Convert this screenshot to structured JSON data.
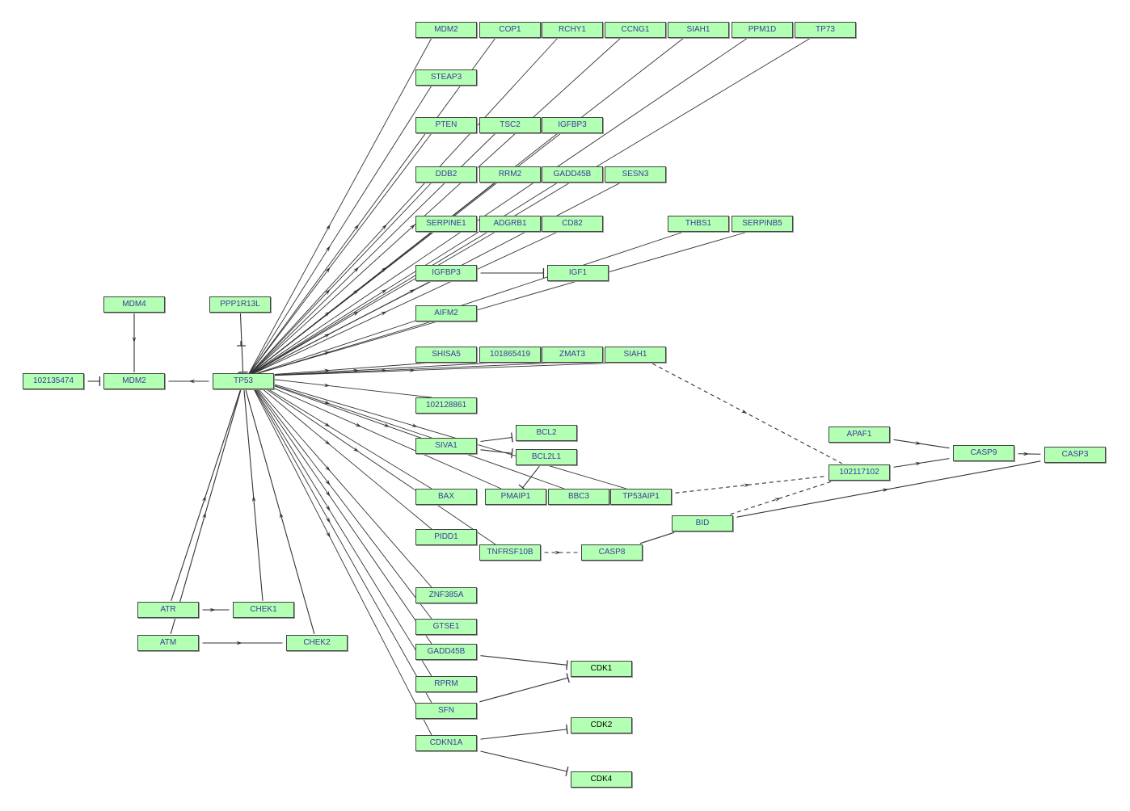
{
  "colors": {
    "node_fill": "#b3ffb3",
    "node_border": "#444444",
    "label": "#3c3c9c",
    "label_dark": "#000000",
    "edge": "#333333"
  },
  "nodes": [
    {
      "id": "MDM2_t",
      "label": "MDM2"
    },
    {
      "id": "COP1",
      "label": "COP1"
    },
    {
      "id": "RCHY1",
      "label": "RCHY1"
    },
    {
      "id": "CCNG1",
      "label": "CCNG1"
    },
    {
      "id": "SIAH1_t",
      "label": "SIAH1"
    },
    {
      "id": "PPM1D",
      "label": "PPM1D"
    },
    {
      "id": "TP73",
      "label": "TP73"
    },
    {
      "id": "STEAP3",
      "label": "STEAP3"
    },
    {
      "id": "PTEN",
      "label": "PTEN"
    },
    {
      "id": "TSC2",
      "label": "TSC2"
    },
    {
      "id": "IGFBP3_t",
      "label": "IGFBP3"
    },
    {
      "id": "DDB2",
      "label": "DDB2"
    },
    {
      "id": "RRM2",
      "label": "RRM2"
    },
    {
      "id": "GADD45B_t",
      "label": "GADD45B"
    },
    {
      "id": "SESN3",
      "label": "SESN3"
    },
    {
      "id": "SERPINE1",
      "label": "SERPINE1"
    },
    {
      "id": "ADGRB1",
      "label": "ADGRB1"
    },
    {
      "id": "CD82",
      "label": "CD82"
    },
    {
      "id": "THBS1",
      "label": "THBS1"
    },
    {
      "id": "SERPINB5",
      "label": "SERPINB5"
    },
    {
      "id": "IGFBP3_m",
      "label": "IGFBP3"
    },
    {
      "id": "IGF1",
      "label": "IGF1"
    },
    {
      "id": "AIFM2",
      "label": "AIFM2"
    },
    {
      "id": "MDM4",
      "label": "MDM4"
    },
    {
      "id": "PPP1R13L",
      "label": "PPP1R13L"
    },
    {
      "id": "N102135474",
      "label": "102135474"
    },
    {
      "id": "MDM2",
      "label": "MDM2"
    },
    {
      "id": "TP53",
      "label": "TP53"
    },
    {
      "id": "SHISA5",
      "label": "SHISA5"
    },
    {
      "id": "N101865419",
      "label": "101865419"
    },
    {
      "id": "ZMAT3",
      "label": "ZMAT3"
    },
    {
      "id": "SIAH1",
      "label": "SIAH1"
    },
    {
      "id": "N102128861",
      "label": "102128861"
    },
    {
      "id": "BCL2",
      "label": "BCL2"
    },
    {
      "id": "BCL2L1",
      "label": "BCL2L1"
    },
    {
      "id": "SIVA1",
      "label": "SIVA1"
    },
    {
      "id": "BAX",
      "label": "BAX"
    },
    {
      "id": "PMAIP1",
      "label": "PMAIP1"
    },
    {
      "id": "BBC3",
      "label": "BBC3"
    },
    {
      "id": "TP53AIP1",
      "label": "TP53AIP1"
    },
    {
      "id": "APAF1",
      "label": "APAF1"
    },
    {
      "id": "CASP9",
      "label": "CASP9"
    },
    {
      "id": "CASP3",
      "label": "CASP3"
    },
    {
      "id": "N102117102",
      "label": "102117102"
    },
    {
      "id": "BID",
      "label": "BID"
    },
    {
      "id": "PIDD1",
      "label": "PIDD1"
    },
    {
      "id": "TNFRSF10B",
      "label": "TNFRSF10B"
    },
    {
      "id": "CASP8",
      "label": "CASP8"
    },
    {
      "id": "ZNF385A",
      "label": "ZNF385A"
    },
    {
      "id": "GTSE1",
      "label": "GTSE1"
    },
    {
      "id": "GADD45B",
      "label": "GADD45B"
    },
    {
      "id": "RPRM",
      "label": "RPRM"
    },
    {
      "id": "SFN",
      "label": "SFN"
    },
    {
      "id": "CDKN1A",
      "label": "CDKN1A"
    },
    {
      "id": "CDK1",
      "label": "CDK1",
      "dark": true
    },
    {
      "id": "CDK2",
      "label": "CDK2",
      "dark": true
    },
    {
      "id": "CDK4",
      "label": "CDK4",
      "dark": true
    },
    {
      "id": "ATR",
      "label": "ATR"
    },
    {
      "id": "CHEK1",
      "label": "CHEK1"
    },
    {
      "id": "ATM",
      "label": "ATM"
    },
    {
      "id": "CHEK2",
      "label": "CHEK2"
    }
  ],
  "tp53_targets": [
    "MDM2_t",
    "COP1",
    "RCHY1",
    "CCNG1",
    "SIAH1_t",
    "PPM1D",
    "TP73",
    "STEAP3",
    "PTEN",
    "TSC2",
    "IGFBP3_t",
    "DDB2",
    "RRM2",
    "GADD45B_t",
    "SESN3",
    "SERPINE1",
    "ADGRB1",
    "CD82",
    "THBS1",
    "SERPINB5",
    "IGFBP3_m",
    "AIFM2",
    "SHISA5",
    "N101865419",
    "ZMAT3",
    "SIAH1",
    "N102128861",
    "SIVA1",
    "BAX",
    "PMAIP1",
    "BBC3",
    "TP53AIP1",
    "PIDD1",
    "TNFRSF10B",
    "ZNF385A",
    "GTSE1",
    "GADD45B",
    "RPRM",
    "SFN",
    "CDKN1A"
  ],
  "edges": [
    {
      "from": "MDM4",
      "to": "MDM2",
      "type": "activation"
    },
    {
      "from": "TP53",
      "to": "MDM2",
      "type": "activation"
    },
    {
      "from": "N102135474",
      "to": "MDM2",
      "type": "inhibition"
    },
    {
      "from": "IGFBP3_m",
      "to": "IGF1",
      "type": "inhibition"
    },
    {
      "from": "SIVA1",
      "to": "BCL2",
      "type": "inhibition"
    },
    {
      "from": "SIVA1",
      "to": "BCL2L1",
      "type": "inhibition"
    },
    {
      "from": "BCL2L1",
      "to": "PMAIP1",
      "type": "inhibition"
    },
    {
      "from": "SIAH1",
      "to": "N102117102",
      "type": "indirect"
    },
    {
      "from": "TP53AIP1",
      "to": "N102117102",
      "type": "indirect"
    },
    {
      "from": "BID",
      "to": "N102117102",
      "type": "indirect"
    },
    {
      "from": "TNFRSF10B",
      "to": "CASP8",
      "type": "indirect"
    },
    {
      "from": "CASP8",
      "to": "BID",
      "type": "line"
    },
    {
      "from": "BID",
      "to": "CASP3",
      "type": "activation"
    },
    {
      "from": "APAF1",
      "to": "CASP9",
      "type": "activation"
    },
    {
      "from": "N102117102",
      "to": "CASP9",
      "type": "activation"
    },
    {
      "from": "CASP9",
      "to": "CASP3",
      "type": "activation"
    },
    {
      "from": "GADD45B",
      "to": "CDK1",
      "type": "inhibition"
    },
    {
      "from": "SFN",
      "to": "CDK1",
      "type": "inhibition"
    },
    {
      "from": "CDKN1A",
      "to": "CDK2",
      "type": "inhibition"
    },
    {
      "from": "CDKN1A",
      "to": "CDK4",
      "type": "inhibition"
    },
    {
      "from": "ATR",
      "to": "CHEK1",
      "type": "activation"
    },
    {
      "from": "ATM",
      "to": "CHEK2",
      "type": "activation"
    },
    {
      "from": "ATR",
      "to": "TP53",
      "type": "activation"
    },
    {
      "from": "ATM",
      "to": "TP53",
      "type": "activation"
    },
    {
      "from": "CHEK1",
      "to": "TP53",
      "type": "activation"
    },
    {
      "from": "CHEK2",
      "to": "TP53",
      "type": "activation"
    },
    {
      "from": "PPP1R13L",
      "to": "TP53",
      "type": "inhibition"
    }
  ]
}
